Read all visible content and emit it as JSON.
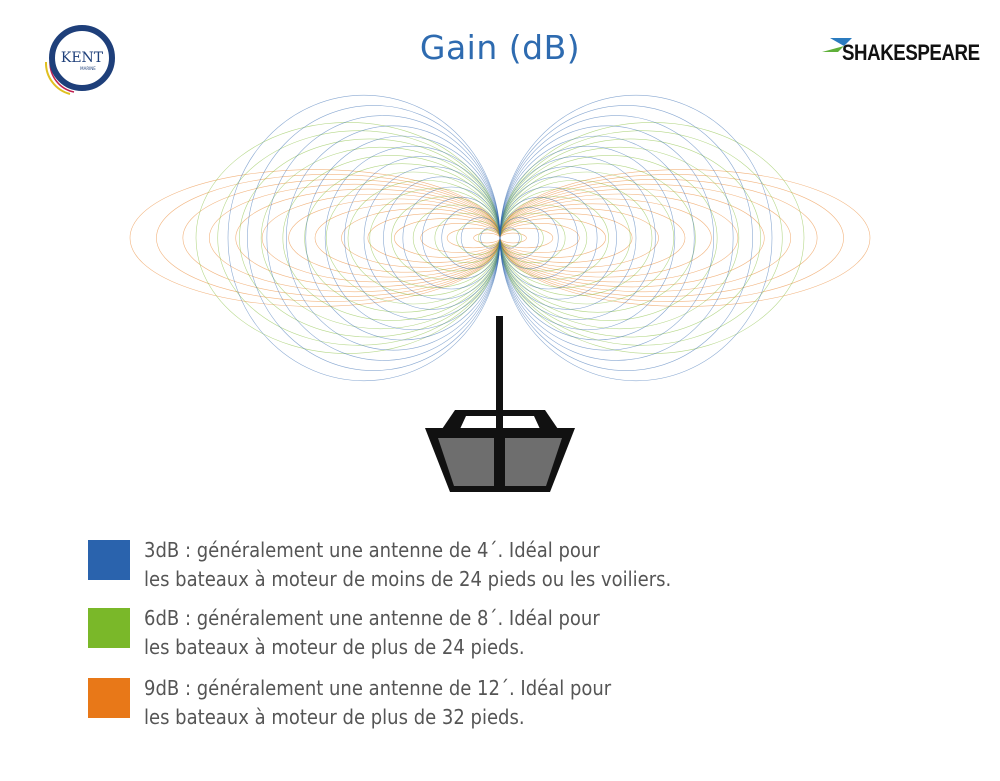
{
  "title": "Gain (dB)",
  "logos": {
    "left": "KENT MARINE EQUIPMENT",
    "right": "SHAKESPEARE"
  },
  "colors": {
    "title": "#2e6bb0",
    "3dB": "#2a63ad",
    "6dB": "#7ab829",
    "9dB": "#e87818",
    "boat": "#111111",
    "window": "#6e6e6e"
  },
  "legend": [
    {
      "gain": "3dB",
      "color": "#2a63ad",
      "line1": "3dB : généralement une antenne de 4´. Idéal pour",
      "line2": "les bateaux à moteur de moins de 24 pieds ou les voiliers."
    },
    {
      "gain": "6dB",
      "color": "#7ab829",
      "line1": "6dB : généralement une antenne de 8´. Idéal pour",
      "line2": "les bateaux à moteur de plus de 24 pieds."
    },
    {
      "gain": "9dB",
      "color": "#e87818",
      "line1": "9dB : généralement une antenne de 12´. Idéal pour",
      "line2": "les bateaux à moteur de plus de 32 pieds."
    }
  ]
}
